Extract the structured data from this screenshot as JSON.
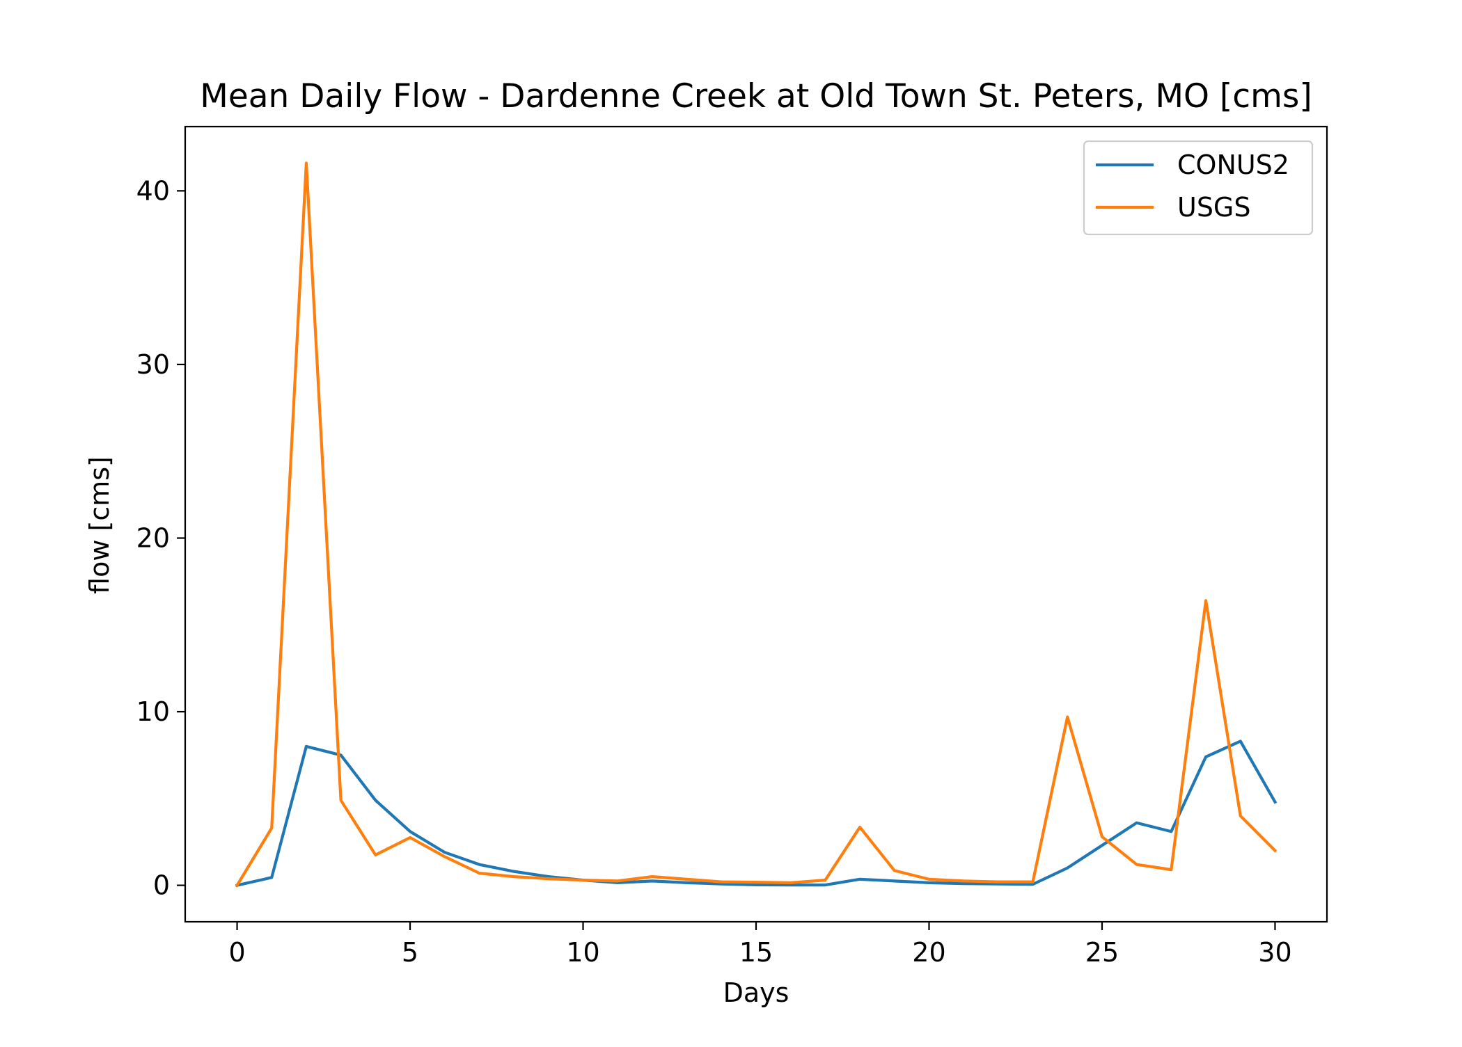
{
  "chart_data": {
    "type": "line",
    "title": "Mean Daily Flow - Dardenne Creek at Old Town St. Peters, MO [cms]",
    "xlabel": "Days",
    "ylabel": "flow [cms]",
    "xlim": [
      -1.5,
      31.5
    ],
    "ylim": [
      -2.1,
      43.7
    ],
    "x_ticks": [
      0,
      5,
      10,
      15,
      20,
      25,
      30
    ],
    "y_ticks": [
      0,
      10,
      20,
      30,
      40
    ],
    "grid": false,
    "legend_position": "top-right",
    "x": [
      0,
      1,
      2,
      3,
      4,
      5,
      6,
      7,
      8,
      9,
      10,
      11,
      12,
      13,
      14,
      15,
      16,
      17,
      18,
      19,
      20,
      21,
      22,
      23,
      24,
      25,
      26,
      27,
      28,
      29,
      30
    ],
    "series": [
      {
        "name": "CONUS2",
        "color": "#1f77b4",
        "values": [
          0.0,
          0.45,
          8.0,
          7.5,
          4.9,
          3.1,
          1.9,
          1.2,
          0.8,
          0.5,
          0.3,
          0.15,
          0.25,
          0.15,
          0.08,
          0.03,
          0.02,
          0.02,
          0.35,
          0.25,
          0.15,
          0.1,
          0.08,
          0.06,
          1.0,
          2.3,
          3.6,
          3.1,
          7.4,
          8.3,
          4.8
        ]
      },
      {
        "name": "USGS",
        "color": "#ff7f0e",
        "values": [
          0.0,
          3.3,
          41.6,
          4.9,
          1.75,
          2.75,
          1.65,
          0.7,
          0.5,
          0.38,
          0.3,
          0.25,
          0.5,
          0.35,
          0.2,
          0.18,
          0.15,
          0.3,
          3.35,
          0.85,
          0.35,
          0.25,
          0.2,
          0.2,
          9.7,
          2.8,
          1.2,
          0.9,
          16.4,
          4.0,
          2.0
        ]
      }
    ]
  }
}
